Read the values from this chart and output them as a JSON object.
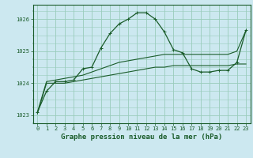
{
  "x": [
    0,
    1,
    2,
    3,
    4,
    5,
    6,
    7,
    8,
    9,
    10,
    11,
    12,
    13,
    14,
    15,
    16,
    17,
    18,
    19,
    20,
    21,
    22,
    23
  ],
  "main_line": [
    1023.1,
    1023.75,
    1024.05,
    1024.05,
    1024.1,
    1024.45,
    1024.5,
    1025.1,
    1025.55,
    1025.85,
    1026.0,
    1026.2,
    1026.2,
    1026.0,
    1025.6,
    1025.05,
    1024.95,
    1024.45,
    1024.35,
    1024.35,
    1024.4,
    1024.4,
    1024.65,
    1025.65
  ],
  "min_line": [
    1023.05,
    1024.0,
    1024.0,
    1024.0,
    1024.05,
    1024.1,
    1024.15,
    1024.2,
    1024.25,
    1024.3,
    1024.35,
    1024.4,
    1024.45,
    1024.5,
    1024.5,
    1024.55,
    1024.55,
    1024.55,
    1024.55,
    1024.55,
    1024.55,
    1024.55,
    1024.6,
    1024.6
  ],
  "max_line": [
    1023.1,
    1024.05,
    1024.1,
    1024.15,
    1024.2,
    1024.25,
    1024.35,
    1024.45,
    1024.55,
    1024.65,
    1024.7,
    1024.75,
    1024.8,
    1024.85,
    1024.9,
    1024.9,
    1024.9,
    1024.9,
    1024.9,
    1024.9,
    1024.9,
    1024.9,
    1025.0,
    1025.65
  ],
  "bg_color": "#cce8f0",
  "grid_color": "#99ccbb",
  "line_color": "#1a5c2a",
  "marker": "+",
  "xlabel": "Graphe pression niveau de la mer (hPa)",
  "ylim": [
    1022.75,
    1026.45
  ],
  "xlim": [
    -0.5,
    23.5
  ],
  "yticks": [
    1023,
    1024,
    1025,
    1026
  ],
  "xticks": [
    0,
    1,
    2,
    3,
    4,
    5,
    6,
    7,
    8,
    9,
    10,
    11,
    12,
    13,
    14,
    15,
    16,
    17,
    18,
    19,
    20,
    21,
    22,
    23
  ],
  "tick_fontsize": 5,
  "xlabel_fontsize": 6.5,
  "label_color": "#1a5c2a"
}
